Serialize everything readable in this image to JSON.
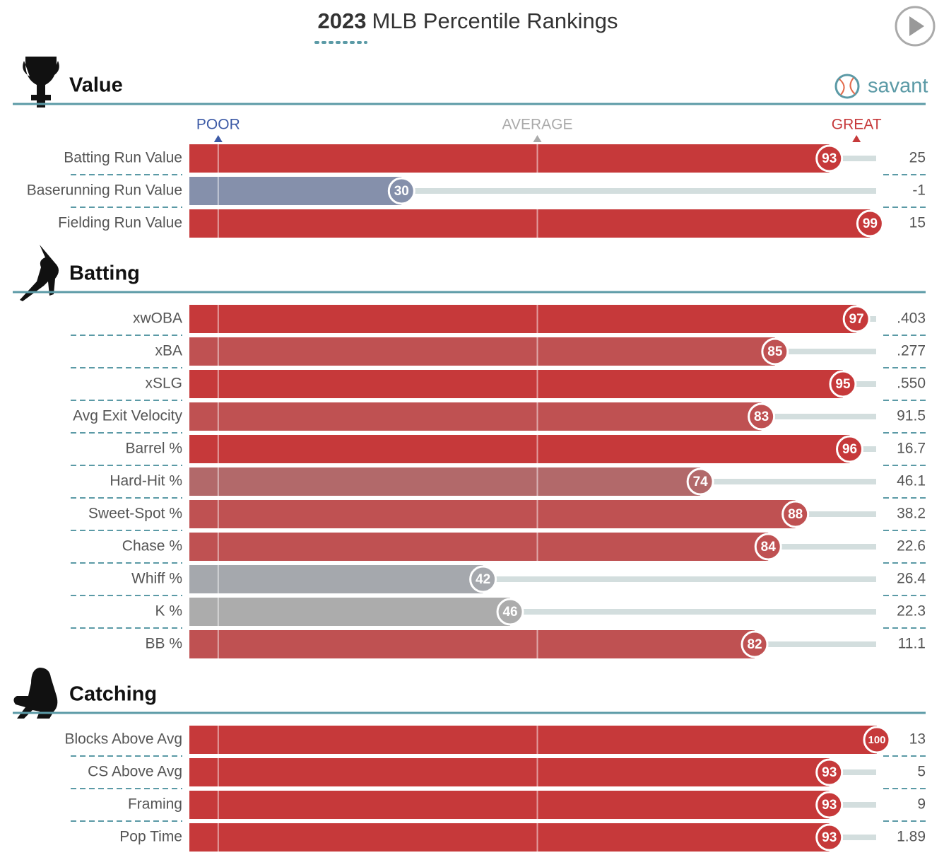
{
  "chart_data": {
    "type": "percentile-bars",
    "title_year": "2023",
    "title": "MLB Percentile Rankings",
    "brand": "savant",
    "scale_labels": [
      "POOR",
      "AVERAGE",
      "GREAT"
    ],
    "xlim": [
      0,
      100
    ],
    "sections": [
      {
        "name": "Value",
        "rows": [
          {
            "label": "Batting Run Value",
            "percentile": 93,
            "stat": "25",
            "color": "#c6393a"
          },
          {
            "label": "Baserunning Run Value",
            "percentile": 30,
            "stat": "-1",
            "color": "#8590ab"
          },
          {
            "label": "Fielding Run Value",
            "percentile": 99,
            "stat": "15",
            "color": "#c6393a"
          }
        ]
      },
      {
        "name": "Batting",
        "rows": [
          {
            "label": "xwOBA",
            "percentile": 97,
            "stat": ".403",
            "color": "#c6393a"
          },
          {
            "label": "xBA",
            "percentile": 85,
            "stat": ".277",
            "color": "#bf5152"
          },
          {
            "label": "xSLG",
            "percentile": 95,
            "stat": ".550",
            "color": "#c6393a"
          },
          {
            "label": "Avg Exit Velocity",
            "percentile": 83,
            "stat": "91.5",
            "color": "#bf5152"
          },
          {
            "label": "Barrel %",
            "percentile": 96,
            "stat": "16.7",
            "color": "#c6393a"
          },
          {
            "label": "Hard-Hit %",
            "percentile": 74,
            "stat": "46.1",
            "color": "#b2696a"
          },
          {
            "label": "Sweet-Spot %",
            "percentile": 88,
            "stat": "38.2",
            "color": "#bf5152"
          },
          {
            "label": "Chase %",
            "percentile": 84,
            "stat": "22.6",
            "color": "#bf5152"
          },
          {
            "label": "Whiff %",
            "percentile": 42,
            "stat": "26.4",
            "color": "#a5a8ad"
          },
          {
            "label": "K %",
            "percentile": 46,
            "stat": "22.3",
            "color": "#acacac"
          },
          {
            "label": "BB %",
            "percentile": 82,
            "stat": "11.1",
            "color": "#bf5152"
          }
        ]
      },
      {
        "name": "Catching",
        "rows": [
          {
            "label": "Blocks Above Avg",
            "percentile": 100,
            "stat": "13",
            "color": "#c6393a"
          },
          {
            "label": "CS Above Avg",
            "percentile": 93,
            "stat": "5",
            "color": "#c6393a"
          },
          {
            "label": "Framing",
            "percentile": 93,
            "stat": "9",
            "color": "#c6393a"
          },
          {
            "label": "Pop Time",
            "percentile": 93,
            "stat": "1.89",
            "color": "#c6393a"
          }
        ]
      }
    ]
  }
}
